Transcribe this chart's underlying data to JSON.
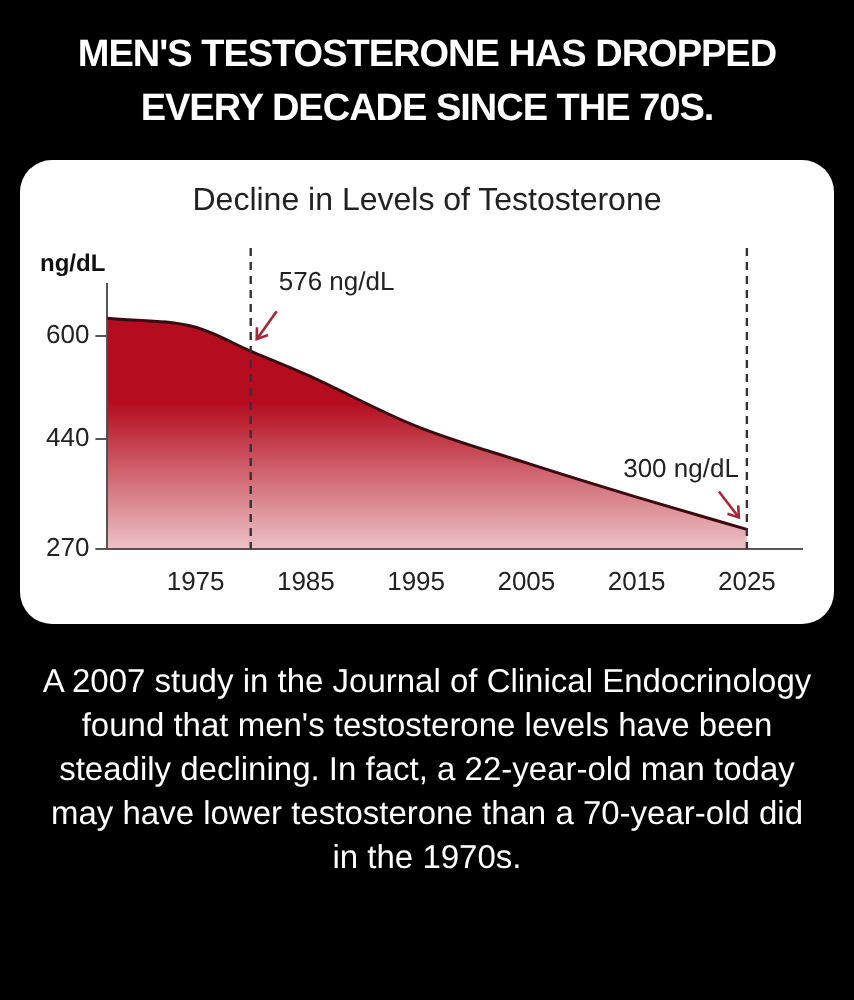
{
  "chart_data": {
    "type": "area",
    "title": "MEN'S TESTOSTERONE HAS DROPPED EVERY DECADE SINCE THE 70S.",
    "subtitle": "Decline in Levels of Testosterone",
    "ylabel": "ng/dL",
    "x": [
      1967,
      1975,
      1980,
      1985,
      1995,
      2005,
      2015,
      2025
    ],
    "series": [
      {
        "color": "#b50d1f",
        "values": [
          627,
          613,
          576,
          540,
          460,
          403,
          350,
          300
        ]
      }
    ],
    "xlim": [
      1967,
      2030
    ],
    "xticks": [
      1975,
      1985,
      1995,
      2005,
      2015,
      2025
    ],
    "ylim": [
      270,
      680
    ],
    "yticks": [
      270,
      440,
      600
    ],
    "grid": false,
    "legend": false,
    "marker": "none",
    "line_style": "solid",
    "ref_lines": [
      {
        "axis": "x",
        "value": 1980,
        "color": "#333333",
        "line_style": "dashed"
      },
      {
        "axis": "x",
        "value": 2025,
        "color": "#333333",
        "line_style": "dashed"
      }
    ],
    "annotations": [
      {
        "text": "576 ng/dL",
        "x": 1980,
        "y": 576
      },
      {
        "text": "300 ng/dL",
        "x": 2025,
        "y": 300
      },
      "A 2007 study in the Journal of Clinical Endocrinology found that men's testosterone levels have been steadily declining. In fact, a 22-year-old man today may have lower testosterone than a 70-year-old did in the 1970s."
    ]
  }
}
